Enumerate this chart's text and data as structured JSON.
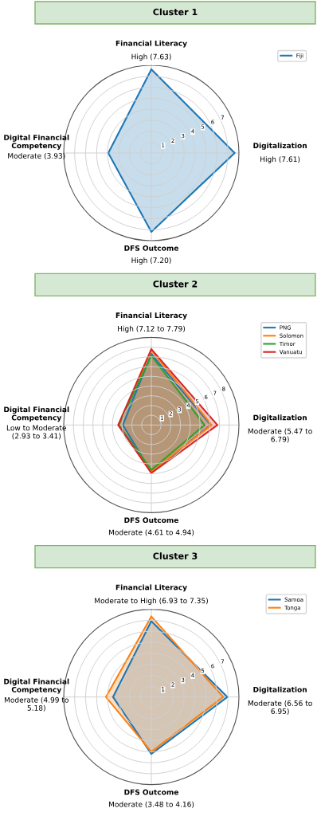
{
  "chart_data": [
    {
      "type": "radar",
      "title": "Cluster 1",
      "categories": [
        "Financial Literacy",
        "Digitalization",
        "DFS Outcome",
        "Digital Financial Competency"
      ],
      "annotations": [
        "High (7.63)",
        "High (7.61)",
        "High (7.20)",
        "Moderate (3.93)"
      ],
      "series": [
        {
          "name": "Fiji",
          "color": "#1f77b4",
          "values": [
            7.63,
            7.61,
            7.2,
            3.93
          ]
        }
      ],
      "ylim": [
        0,
        8
      ],
      "yticks": [
        1,
        2,
        3,
        4,
        5,
        6,
        7
      ],
      "grid": true,
      "legend": "top right"
    },
    {
      "type": "radar",
      "title": "Cluster 2",
      "categories": [
        "Financial Literacy",
        "Digitalization",
        "DFS Outcome",
        "Digital Financial Competency"
      ],
      "annotations": [
        "High (7.12 to 7.79)",
        "Moderate (5.47 to 6.79)",
        "Moderate (4.61 to 4.94)",
        "Low to Moderate (2.93 to 3.41)"
      ],
      "series": [
        {
          "name": "PNG",
          "color": "#1f77b4",
          "values": [
            7.3,
            6.1,
            4.85,
            2.93
          ]
        },
        {
          "name": "Solomon",
          "color": "#ff7f0e",
          "values": [
            7.7,
            6.2,
            4.75,
            3.3
          ]
        },
        {
          "name": "Timor",
          "color": "#2ca02c",
          "values": [
            7.12,
            5.47,
            4.61,
            3.35
          ]
        },
        {
          "name": "Vanuatu",
          "color": "#d62728",
          "values": [
            7.79,
            6.79,
            4.94,
            3.41
          ]
        }
      ],
      "ylim": [
        0,
        9
      ],
      "yticks": [
        1,
        2,
        3,
        4,
        5,
        6,
        7,
        8
      ],
      "grid": true,
      "legend": "top right"
    },
    {
      "type": "radar",
      "title": "Cluster 3",
      "categories": [
        "Financial Literacy",
        "Digitalization",
        "DFS Outcome",
        "Digital Financial Competency"
      ],
      "annotations": [
        "Moderate to High (6.93 to 7.35)",
        "Moderate (6.56 to 6.95)",
        "Moderate (3.48 to 4.16)",
        "Moderate (4.99 to 5.18)"
      ],
      "series": [
        {
          "name": "Samoa",
          "color": "#1f77b4",
          "values": [
            6.93,
            6.95,
            5.2,
            3.5
          ]
        },
        {
          "name": "Tonga",
          "color": "#ff7f0e",
          "values": [
            7.35,
            6.56,
            5.0,
            4.15
          ]
        }
      ],
      "ylim": [
        0,
        8
      ],
      "yticks": [
        1,
        2,
        3,
        4,
        5,
        6,
        7
      ],
      "grid": true,
      "legend": "top right"
    }
  ]
}
